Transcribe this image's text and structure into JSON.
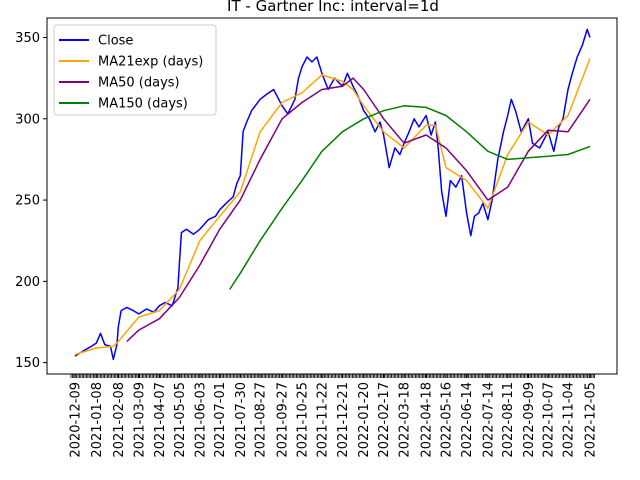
{
  "chart_data": {
    "type": "line",
    "title": "IT - Gartner Inc: interval=1d",
    "xlabel": "",
    "ylabel": "",
    "x_range": [
      "2020-12-09",
      "2022-12-05"
    ],
    "ylim": [
      143,
      362
    ],
    "y_ticks": [
      150,
      200,
      250,
      300,
      350
    ],
    "x_tick_labels": [
      "2020-12-09",
      "2021-01-08",
      "2021-02-08",
      "2021-03-09",
      "2021-04-07",
      "2021-05-05",
      "2021-06-03",
      "2021-07-01",
      "2021-07-30",
      "2021-08-27",
      "2021-09-27",
      "2021-10-25",
      "2021-11-22",
      "2021-12-21",
      "2022-01-20",
      "2022-02-17",
      "2022-03-18",
      "2022-04-18",
      "2022-05-16",
      "2022-06-14",
      "2022-07-14",
      "2022-08-11",
      "2022-09-09",
      "2022-10-07",
      "2022-11-04",
      "2022-12-05"
    ],
    "grid": false,
    "legend_position": "top-left",
    "series": [
      {
        "name": "Close",
        "color": "#0000ff",
        "points": [
          [
            "2020-12-09",
            154
          ],
          [
            "2020-12-20",
            157
          ],
          [
            "2021-01-01",
            160
          ],
          [
            "2021-01-08",
            162
          ],
          [
            "2021-01-14",
            168
          ],
          [
            "2021-01-20",
            161
          ],
          [
            "2021-01-28",
            160
          ],
          [
            "2021-02-01",
            152
          ],
          [
            "2021-02-06",
            161
          ],
          [
            "2021-02-08",
            172
          ],
          [
            "2021-02-12",
            182
          ],
          [
            "2021-02-20",
            184
          ],
          [
            "2021-03-01",
            182
          ],
          [
            "2021-03-09",
            180
          ],
          [
            "2021-03-20",
            183
          ],
          [
            "2021-03-30",
            181
          ],
          [
            "2021-04-07",
            185
          ],
          [
            "2021-04-15",
            187
          ],
          [
            "2021-04-25",
            185
          ],
          [
            "2021-05-03",
            196
          ],
          [
            "2021-05-05",
            210
          ],
          [
            "2021-05-08",
            230
          ],
          [
            "2021-05-15",
            232
          ],
          [
            "2021-05-25",
            229
          ],
          [
            "2021-06-03",
            232
          ],
          [
            "2021-06-15",
            238
          ],
          [
            "2021-06-25",
            240
          ],
          [
            "2021-07-01",
            244
          ],
          [
            "2021-07-10",
            248
          ],
          [
            "2021-07-20",
            252
          ],
          [
            "2021-07-25",
            260
          ],
          [
            "2021-07-30",
            265
          ],
          [
            "2021-08-03",
            292
          ],
          [
            "2021-08-08",
            298
          ],
          [
            "2021-08-15",
            305
          ],
          [
            "2021-08-27",
            312
          ],
          [
            "2021-09-05",
            315
          ],
          [
            "2021-09-15",
            318
          ],
          [
            "2021-09-27",
            308
          ],
          [
            "2021-10-05",
            303
          ],
          [
            "2021-10-15",
            312
          ],
          [
            "2021-10-20",
            325
          ],
          [
            "2021-10-25",
            332
          ],
          [
            "2021-11-01",
            338
          ],
          [
            "2021-11-08",
            335
          ],
          [
            "2021-11-15",
            338
          ],
          [
            "2021-11-22",
            328
          ],
          [
            "2021-12-01",
            318
          ],
          [
            "2021-12-10",
            325
          ],
          [
            "2021-12-21",
            320
          ],
          [
            "2021-12-28",
            328
          ],
          [
            "2022-01-05",
            320
          ],
          [
            "2022-01-12",
            314
          ],
          [
            "2022-01-20",
            305
          ],
          [
            "2022-01-28",
            300
          ],
          [
            "2022-02-05",
            292
          ],
          [
            "2022-02-12",
            298
          ],
          [
            "2022-02-17",
            290
          ],
          [
            "2022-02-25",
            270
          ],
          [
            "2022-03-05",
            282
          ],
          [
            "2022-03-12",
            278
          ],
          [
            "2022-03-18",
            285
          ],
          [
            "2022-03-25",
            292
          ],
          [
            "2022-04-01",
            300
          ],
          [
            "2022-04-08",
            295
          ],
          [
            "2022-04-18",
            302
          ],
          [
            "2022-04-25",
            290
          ],
          [
            "2022-05-01",
            298
          ],
          [
            "2022-05-05",
            282
          ],
          [
            "2022-05-10",
            255
          ],
          [
            "2022-05-16",
            240
          ],
          [
            "2022-05-22",
            262
          ],
          [
            "2022-05-30",
            258
          ],
          [
            "2022-06-07",
            265
          ],
          [
            "2022-06-14",
            242
          ],
          [
            "2022-06-20",
            228
          ],
          [
            "2022-06-25",
            240
          ],
          [
            "2022-07-01",
            242
          ],
          [
            "2022-07-07",
            248
          ],
          [
            "2022-07-14",
            238
          ],
          [
            "2022-07-20",
            250
          ],
          [
            "2022-07-28",
            275
          ],
          [
            "2022-08-05",
            292
          ],
          [
            "2022-08-11",
            302
          ],
          [
            "2022-08-16",
            312
          ],
          [
            "2022-08-22",
            305
          ],
          [
            "2022-08-30",
            292
          ],
          [
            "2022-09-09",
            300
          ],
          [
            "2022-09-15",
            285
          ],
          [
            "2022-09-25",
            282
          ],
          [
            "2022-10-07",
            292
          ],
          [
            "2022-10-15",
            280
          ],
          [
            "2022-10-22",
            295
          ],
          [
            "2022-10-28",
            300
          ],
          [
            "2022-11-04",
            318
          ],
          [
            "2022-11-10",
            328
          ],
          [
            "2022-11-17",
            338
          ],
          [
            "2022-11-24",
            345
          ],
          [
            "2022-12-01",
            355
          ],
          [
            "2022-12-05",
            350
          ]
        ]
      },
      {
        "name": "MA21exp (days)",
        "color": "#ffa500",
        "points": [
          [
            "2020-12-09",
            155
          ],
          [
            "2021-01-08",
            159
          ],
          [
            "2021-02-01",
            160
          ],
          [
            "2021-02-08",
            163
          ],
          [
            "2021-03-09",
            178
          ],
          [
            "2021-04-07",
            182
          ],
          [
            "2021-05-05",
            195
          ],
          [
            "2021-06-03",
            225
          ],
          [
            "2021-07-01",
            240
          ],
          [
            "2021-07-30",
            255
          ],
          [
            "2021-08-27",
            292
          ],
          [
            "2021-09-27",
            310
          ],
          [
            "2021-10-25",
            316
          ],
          [
            "2021-11-22",
            327
          ],
          [
            "2021-12-21",
            323
          ],
          [
            "2022-01-05",
            318
          ],
          [
            "2022-01-20",
            308
          ],
          [
            "2022-02-17",
            292
          ],
          [
            "2022-03-18",
            282
          ],
          [
            "2022-04-18",
            296
          ],
          [
            "2022-05-01",
            296
          ],
          [
            "2022-05-16",
            270
          ],
          [
            "2022-06-14",
            262
          ],
          [
            "2022-07-14",
            245
          ],
          [
            "2022-08-11",
            278
          ],
          [
            "2022-09-09",
            298
          ],
          [
            "2022-10-07",
            290
          ],
          [
            "2022-11-04",
            302
          ],
          [
            "2022-12-05",
            337
          ]
        ]
      },
      {
        "name": "MA50 (days)",
        "color": "#800080",
        "points": [
          [
            "2021-02-20",
            163
          ],
          [
            "2021-03-09",
            170
          ],
          [
            "2021-04-07",
            177
          ],
          [
            "2021-05-05",
            190
          ],
          [
            "2021-06-03",
            210
          ],
          [
            "2021-07-01",
            232
          ],
          [
            "2021-07-30",
            250
          ],
          [
            "2021-08-27",
            275
          ],
          [
            "2021-09-27",
            300
          ],
          [
            "2021-10-25",
            310
          ],
          [
            "2021-11-22",
            318
          ],
          [
            "2021-12-21",
            320
          ],
          [
            "2022-01-05",
            325
          ],
          [
            "2022-01-20",
            318
          ],
          [
            "2022-02-17",
            300
          ],
          [
            "2022-03-18",
            285
          ],
          [
            "2022-04-18",
            290
          ],
          [
            "2022-05-16",
            282
          ],
          [
            "2022-06-14",
            268
          ],
          [
            "2022-07-14",
            250
          ],
          [
            "2022-08-11",
            258
          ],
          [
            "2022-09-09",
            280
          ],
          [
            "2022-10-07",
            293
          ],
          [
            "2022-11-04",
            292
          ],
          [
            "2022-12-05",
            312
          ]
        ]
      },
      {
        "name": "MA150 (days)",
        "color": "#008000",
        "points": [
          [
            "2021-07-15",
            195
          ],
          [
            "2021-07-30",
            205
          ],
          [
            "2021-08-27",
            225
          ],
          [
            "2021-09-27",
            245
          ],
          [
            "2021-10-25",
            262
          ],
          [
            "2021-11-22",
            280
          ],
          [
            "2021-12-21",
            292
          ],
          [
            "2022-01-20",
            300
          ],
          [
            "2022-02-17",
            305
          ],
          [
            "2022-03-18",
            308
          ],
          [
            "2022-04-18",
            307
          ],
          [
            "2022-05-16",
            302
          ],
          [
            "2022-06-14",
            292
          ],
          [
            "2022-07-14",
            280
          ],
          [
            "2022-08-11",
            275
          ],
          [
            "2022-09-09",
            276
          ],
          [
            "2022-10-07",
            277
          ],
          [
            "2022-11-04",
            278
          ],
          [
            "2022-12-05",
            283
          ]
        ]
      }
    ]
  }
}
